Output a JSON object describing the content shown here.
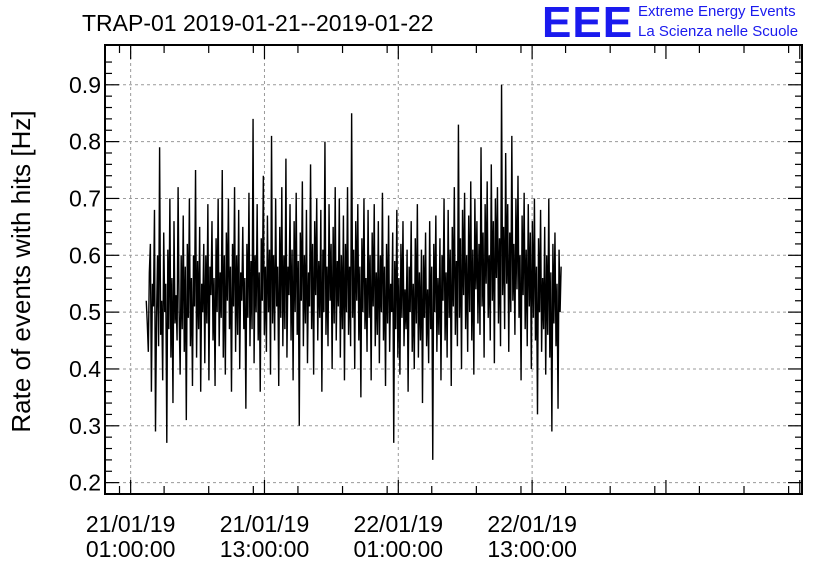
{
  "header": {
    "title": "TRAP-01 2019-01-21--2019-01-22",
    "logo_text": "EEE",
    "logo_line1": "Extreme Energy Events",
    "logo_line2": "La Scienza nelle Scuole",
    "logo_color": "#1a1aee"
  },
  "chart_data": {
    "type": "line",
    "title": "TRAP-01 2019-01-21--2019-01-22",
    "xlabel": "",
    "ylabel": "Rate of events with hits [Hz]",
    "ylim": [
      0.18,
      0.97
    ],
    "xlim_hours_from_21_01_19_00h": [
      -1.3,
      61.2
    ],
    "x_ticks": [
      {
        "date": "21/01/19",
        "time": "01:00:00",
        "hour": 1
      },
      {
        "date": "21/01/19",
        "time": "13:00:00",
        "hour": 13
      },
      {
        "date": "22/01/19",
        "time": "01:00:00",
        "hour": 25
      },
      {
        "date": "22/01/19",
        "time": "13:00:00",
        "hour": 37
      }
    ],
    "y_ticks": [
      "0.2",
      "0.3",
      "0.4",
      "0.5",
      "0.6",
      "0.7",
      "0.8",
      "0.9"
    ],
    "grid": true,
    "line_color": "#000000",
    "series": [
      {
        "x_start_hour": 2.4,
        "x_end_hour": 39.6,
        "values": [
          0.52,
          0.48,
          0.43,
          0.57,
          0.62,
          0.36,
          0.55,
          0.51,
          0.68,
          0.29,
          0.49,
          0.6,
          0.44,
          0.79,
          0.46,
          0.52,
          0.38,
          0.64,
          0.5,
          0.55,
          0.27,
          0.61,
          0.47,
          0.7,
          0.42,
          0.56,
          0.34,
          0.66,
          0.48,
          0.53,
          0.45,
          0.72,
          0.5,
          0.39,
          0.6,
          0.47,
          0.67,
          0.43,
          0.58,
          0.31,
          0.62,
          0.49,
          0.7,
          0.44,
          0.56,
          0.37,
          0.6,
          0.51,
          0.75,
          0.42,
          0.59,
          0.47,
          0.65,
          0.36,
          0.55,
          0.5,
          0.62,
          0.41,
          0.6,
          0.48,
          0.69,
          0.38,
          0.58,
          0.53,
          0.66,
          0.45,
          0.56,
          0.37,
          0.63,
          0.5,
          0.7,
          0.44,
          0.57,
          0.49,
          0.75,
          0.42,
          0.6,
          0.39,
          0.64,
          0.52,
          0.7,
          0.47,
          0.58,
          0.36,
          0.62,
          0.51,
          0.72,
          0.43,
          0.6,
          0.46,
          0.68,
          0.4,
          0.57,
          0.52,
          0.65,
          0.47,
          0.56,
          0.33,
          0.62,
          0.49,
          0.71,
          0.44,
          0.59,
          0.47,
          0.84,
          0.41,
          0.6,
          0.5,
          0.69,
          0.45,
          0.57,
          0.36,
          0.63,
          0.52,
          0.74,
          0.46,
          0.58,
          0.43,
          0.67,
          0.5,
          0.61,
          0.39,
          0.81,
          0.48,
          0.6,
          0.45,
          0.7,
          0.51,
          0.58,
          0.37,
          0.65,
          0.49,
          0.72,
          0.44,
          0.6,
          0.47,
          0.77,
          0.42,
          0.58,
          0.53,
          0.69,
          0.45,
          0.61,
          0.38,
          0.66,
          0.5,
          0.71,
          0.46,
          0.59,
          0.3,
          0.64,
          0.52,
          0.73,
          0.44,
          0.6,
          0.48,
          0.68,
          0.41,
          0.57,
          0.51,
          0.76,
          0.47,
          0.62,
          0.39,
          0.66,
          0.53,
          0.7,
          0.45,
          0.59,
          0.49,
          0.68,
          0.36,
          0.61,
          0.5,
          0.8,
          0.46,
          0.58,
          0.44,
          0.69,
          0.52,
          0.62,
          0.4,
          0.65,
          0.48,
          0.72,
          0.45,
          0.59,
          0.51,
          0.7,
          0.42,
          0.6,
          0.47,
          0.67,
          0.38,
          0.62,
          0.5,
          0.72,
          0.46,
          0.58,
          0.44,
          0.85,
          0.49,
          0.61,
          0.4,
          0.66,
          0.52,
          0.69,
          0.45,
          0.58,
          0.35,
          0.63,
          0.5,
          0.7,
          0.47,
          0.56,
          0.43,
          0.68,
          0.49,
          0.6,
          0.38,
          0.64,
          0.51,
          0.69,
          0.44,
          0.57,
          0.46,
          0.66,
          0.41,
          0.6,
          0.5,
          0.71,
          0.45,
          0.58,
          0.37,
          0.62,
          0.48,
          0.67,
          0.43,
          0.55,
          0.5,
          0.64,
          0.27,
          0.59,
          0.47,
          0.68,
          0.42,
          0.56,
          0.39,
          0.62,
          0.49,
          0.66,
          0.44,
          0.54,
          0.47,
          0.61,
          0.36,
          0.58,
          0.5,
          0.66,
          0.43,
          0.55,
          0.4,
          0.63,
          0.48,
          0.69,
          0.42,
          0.57,
          0.45,
          0.61,
          0.34,
          0.6,
          0.49,
          0.64,
          0.44,
          0.54,
          0.41,
          0.66,
          0.47,
          0.58,
          0.24,
          0.62,
          0.5,
          0.67,
          0.43,
          0.56,
          0.46,
          0.63,
          0.38,
          0.6,
          0.52,
          0.7,
          0.45,
          0.57,
          0.42,
          0.68,
          0.49,
          0.61,
          0.37,
          0.65,
          0.51,
          0.72,
          0.46,
          0.59,
          0.44,
          0.83,
          0.49,
          0.63,
          0.4,
          0.68,
          0.53,
          0.71,
          0.47,
          0.6,
          0.43,
          0.67,
          0.5,
          0.73,
          0.45,
          0.61,
          0.39,
          0.7,
          0.54,
          0.66,
          0.48,
          0.62,
          0.46,
          0.79,
          0.51,
          0.64,
          0.42,
          0.69,
          0.55,
          0.73,
          0.49,
          0.6,
          0.45,
          0.76,
          0.52,
          0.66,
          0.41,
          0.7,
          0.56,
          0.72,
          0.48,
          0.63,
          0.44,
          0.9,
          0.53,
          0.65,
          0.47,
          0.78,
          0.55,
          0.69,
          0.43,
          0.64,
          0.5,
          0.81,
          0.52,
          0.62,
          0.46,
          0.7,
          0.54,
          0.74,
          0.49,
          0.6,
          0.38,
          0.67,
          0.53,
          0.71,
          0.47,
          0.61,
          0.44,
          0.69,
          0.51,
          0.64,
          0.4,
          0.66,
          0.49,
          0.7,
          0.45,
          0.58,
          0.32,
          0.63,
          0.5,
          0.68,
          0.43,
          0.56,
          0.47,
          0.65,
          0.39,
          0.6,
          0.46,
          0.7,
          0.42,
          0.57,
          0.29,
          0.62,
          0.48,
          0.64,
          0.44,
          0.55,
          0.33,
          0.61,
          0.5,
          0.58
        ]
      }
    ]
  }
}
